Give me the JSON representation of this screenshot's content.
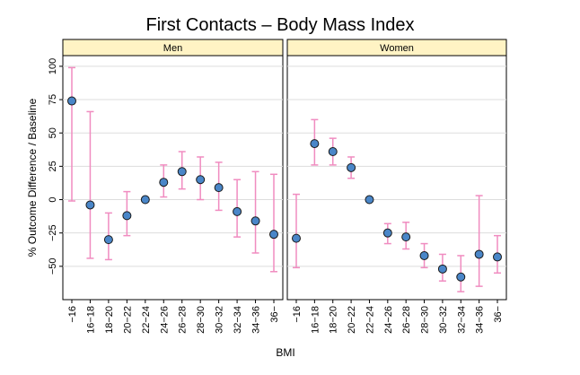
{
  "chart_data": {
    "type": "scatter",
    "title": "First Contacts – Body Mass Index",
    "xlabel": "BMI",
    "ylabel": "% Outcome Difference / Baseline",
    "categories": [
      "−16",
      "16−18",
      "18−20",
      "20−22",
      "22−24",
      "24−26",
      "26−28",
      "28−30",
      "30−32",
      "32−34",
      "34−36",
      "36−"
    ],
    "ylim": [
      -75,
      108
    ],
    "yticks": [
      100,
      75,
      50,
      25,
      0,
      -25,
      -50
    ],
    "ytick_labels": [
      "100",
      "75",
      "50",
      "25",
      "0",
      "−25",
      "−50"
    ],
    "grid": true,
    "error_bars": true,
    "colors": {
      "point_fill": "#4a86c8",
      "point_stroke": "#1a1a1a",
      "error_bar": "#f08cc0",
      "strip_fill": "#fff3c4",
      "grid": "#dddddd",
      "frame": "#000000"
    },
    "panels": [
      {
        "name": "Men",
        "values": [
          74,
          -4,
          -30,
          -12,
          0,
          13,
          21,
          15,
          9,
          -9,
          -16,
          -26
        ],
        "lower": [
          -1,
          -44,
          -45,
          -27,
          0,
          2,
          8,
          0,
          -8,
          -28,
          -40,
          -54
        ],
        "upper": [
          99,
          66,
          -10,
          6,
          0,
          26,
          36,
          32,
          28,
          15,
          21,
          19
        ]
      },
      {
        "name": "Women",
        "values": [
          -29,
          42,
          36,
          24,
          0,
          -25,
          -28,
          -42,
          -52,
          -58,
          -41,
          -43
        ],
        "lower": [
          -51,
          26,
          26,
          16,
          0,
          -33,
          -37,
          -51,
          -61,
          -69,
          -65,
          -55
        ],
        "upper": [
          4,
          60,
          46,
          32,
          0,
          -18,
          -17,
          -33,
          -41,
          -42,
          3,
          -27
        ]
      }
    ]
  }
}
